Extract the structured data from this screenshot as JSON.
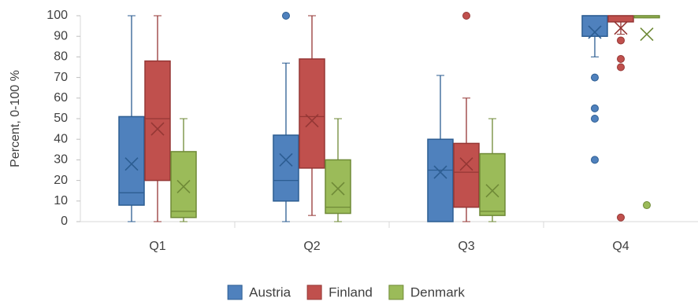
{
  "chart_data": {
    "type": "box",
    "y_label": "Percent, 0-100 %",
    "categories": [
      "Q1",
      "Q2",
      "Q3",
      "Q4"
    ],
    "ylim": [
      0,
      100
    ],
    "yticks": [
      0,
      10,
      20,
      30,
      40,
      50,
      60,
      70,
      80,
      90,
      100
    ],
    "legend": "bottom",
    "series": [
      {
        "name": "Austria",
        "color": "#4f81bd",
        "edge": "#2c5d92",
        "values": [
          {
            "min": 0,
            "q1": 8,
            "median": 14,
            "q3": 51,
            "max": 100,
            "mean": 28,
            "outliers": []
          },
          {
            "min": 0,
            "q1": 10,
            "median": 20,
            "q3": 42,
            "max": 77,
            "mean": 30,
            "outliers": [
              100
            ]
          },
          {
            "min": 0,
            "q1": 0,
            "median": 25,
            "q3": 40,
            "max": 71,
            "mean": 24,
            "outliers": []
          },
          {
            "min": 80,
            "q1": 90,
            "median": 100,
            "q3": 100,
            "max": 100,
            "mean": 92,
            "outliers": [
              70,
              55,
              50,
              30
            ]
          }
        ]
      },
      {
        "name": "Finland",
        "color": "#c0504d",
        "edge": "#953735",
        "values": [
          {
            "min": 0,
            "q1": 20,
            "median": 50,
            "q3": 78,
            "max": 100,
            "mean": 45,
            "outliers": []
          },
          {
            "min": 3,
            "q1": 26,
            "median": 51,
            "q3": 79,
            "max": 100,
            "mean": 49,
            "outliers": []
          },
          {
            "min": 0,
            "q1": 7,
            "median": 24,
            "q3": 38,
            "max": 60,
            "mean": 28,
            "outliers": [
              100
            ]
          },
          {
            "min": 91,
            "q1": 97,
            "median": 100,
            "q3": 100,
            "max": 100,
            "mean": 94,
            "outliers": [
              88,
              79,
              75,
              2
            ]
          }
        ]
      },
      {
        "name": "Denmark",
        "color": "#9bbb59",
        "edge": "#6f8a37",
        "values": [
          {
            "min": 0,
            "q1": 2,
            "median": 5,
            "q3": 34,
            "max": 50,
            "mean": 17,
            "outliers": []
          },
          {
            "min": 0,
            "q1": 4,
            "median": 7,
            "q3": 30,
            "max": 50,
            "mean": 16,
            "outliers": []
          },
          {
            "min": 0,
            "q1": 3,
            "median": 5,
            "q3": 33,
            "max": 50,
            "mean": 15,
            "outliers": []
          },
          {
            "min": 99,
            "q1": 99,
            "median": 100,
            "q3": 100,
            "max": 100,
            "mean": 91,
            "outliers": [
              8
            ]
          }
        ]
      }
    ]
  }
}
